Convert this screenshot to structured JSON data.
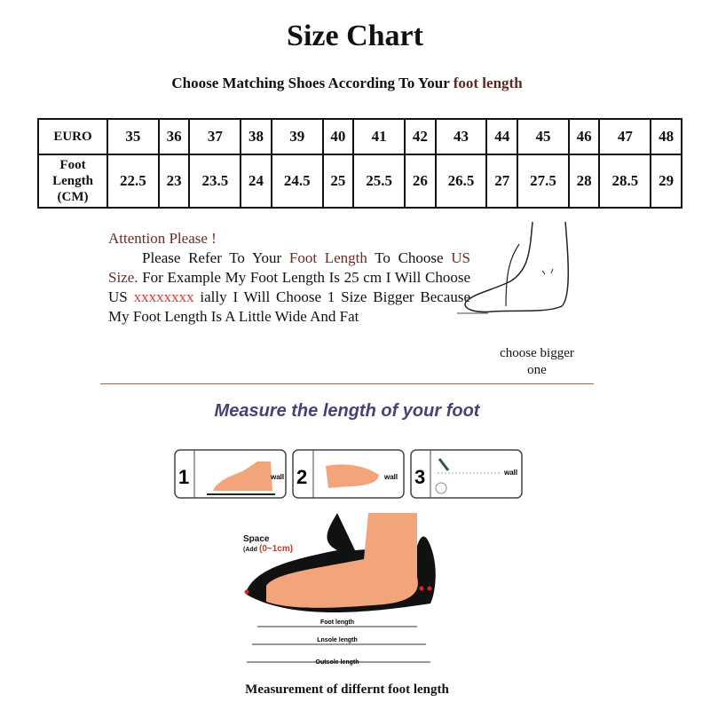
{
  "title": "Size Chart",
  "subtitle": {
    "prefix": "Choose Matching Shoes According To Your ",
    "highlight": "foot length"
  },
  "table": {
    "row1_label": "EURO",
    "row2_label": "Foot Length (CM)",
    "euro": [
      "35",
      "36",
      "37",
      "38",
      "39",
      "40",
      "41",
      "42",
      "43",
      "44",
      "45",
      "46",
      "47",
      "48"
    ],
    "foot_cm": [
      "22.5",
      "23",
      "23.5",
      "24",
      "24.5",
      "25",
      "25.5",
      "26",
      "26.5",
      "27",
      "27.5",
      "28",
      "28.5",
      "29"
    ]
  },
  "attention": {
    "heading": "Attention Please !",
    "t1": "Please Refer To Your ",
    "t2": "Foot Length",
    "t3": " To Choose ",
    "t4": "US Size.",
    "t5": " For Example My Foot Length Is 25 cm I Will Choose US ",
    "t6": "xxxxxxxx",
    "t7": " ially I Will Choose 1 Size Bigger Because My Foot Length Is A Little Wide And Fat"
  },
  "choose_bigger": "choose bigger one",
  "measure_heading": "Measure the length of your foot",
  "steps": [
    {
      "num": "1",
      "wall": "wall"
    },
    {
      "num": "2",
      "wall": "wall"
    },
    {
      "num": "3",
      "wall": "wall"
    }
  ],
  "diagram": {
    "space": "Space",
    "add_prefix": "(Add",
    "add_value": "(0~1cm)",
    "foot_length": "Foot length",
    "insole_length": "Lnsole length",
    "outsole_length": "Outsole length"
  },
  "caption": "Measurement of differnt foot length"
}
